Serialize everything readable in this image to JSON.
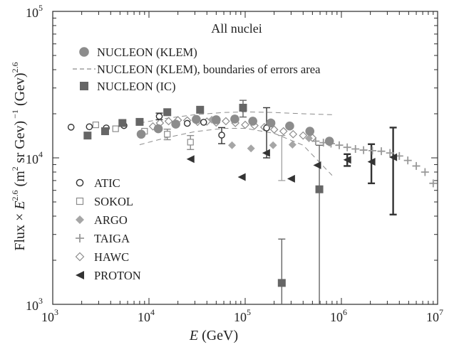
{
  "chart_data": {
    "type": "scatter",
    "title": "All nuclei",
    "xlabel_italic": "E",
    "xlabel_rest": " (GeV)",
    "ylabel_parts": [
      "Flux × ",
      "E",
      "2.6",
      " (m",
      "2",
      " sr Gev)",
      " −1",
      " (Gev)",
      "2.6"
    ],
    "x_scale": "log",
    "y_scale": "log",
    "xlim": [
      1000,
      10000000
    ],
    "ylim": [
      1000,
      100000
    ],
    "x_ticks": [
      {
        "value": 1000,
        "base": "10",
        "exp": "3"
      },
      {
        "value": 10000,
        "base": "10",
        "exp": "4"
      },
      {
        "value": 100000,
        "base": "10",
        "exp": "5"
      },
      {
        "value": 1000000,
        "base": "10",
        "exp": "6"
      },
      {
        "value": 10000000,
        "base": "10",
        "exp": "7"
      }
    ],
    "y_ticks": [
      {
        "value": 1000,
        "base": "10",
        "exp": "3"
      },
      {
        "value": 10000,
        "base": "10",
        "exp": "4"
      },
      {
        "value": 100000,
        "base": "10",
        "exp": "5"
      }
    ],
    "legend_top": [
      {
        "label": "NUCLEON (KLEM)",
        "marker": "circle",
        "color": "#8c8c8c"
      },
      {
        "label": "NUCLEON (KLEM), boundaries of errors area",
        "marker": "dash",
        "color": "#8c8c8c"
      },
      {
        "label": "NUCLEON (IC)",
        "marker": "square",
        "color": "#666666"
      }
    ],
    "legend_left": [
      {
        "label": "ATIC",
        "marker": "open-circle",
        "color": "#333333"
      },
      {
        "label": "SOKOL",
        "marker": "open-square",
        "color": "#8c8c8c"
      },
      {
        "label": "ARGO",
        "marker": "diamond",
        "color": "#a6a6a6"
      },
      {
        "label": "TAIGA",
        "marker": "plus",
        "color": "#999999"
      },
      {
        "label": "HAWC",
        "marker": "open-diamond",
        "color": "#8c8c8c"
      },
      {
        "label": "PROTON",
        "marker": "left-triangle",
        "color": "#333333"
      }
    ],
    "series": [
      {
        "name": "NUCLEON (KLEM)",
        "marker": "circle",
        "color": "#8c8c8c",
        "points": [
          [
            8300,
            14500
          ],
          [
            12500,
            15800
          ],
          [
            19000,
            17000
          ],
          [
            31000,
            18300
          ],
          [
            50000,
            18200
          ],
          [
            78000,
            18400
          ],
          [
            120000,
            17800
          ],
          [
            185000,
            17300
          ],
          [
            290000,
            16500
          ],
          [
            470000,
            15200
          ],
          [
            750000,
            13000
          ]
        ]
      },
      {
        "name": "NUCLEON (IC)",
        "marker": "square",
        "color": "#666666",
        "points": [
          [
            2300,
            14200
          ],
          [
            3500,
            15200
          ],
          [
            5300,
            17300
          ],
          [
            8000,
            17600
          ],
          [
            15500,
            20500
          ],
          [
            34000,
            21300
          ],
          [
            95000,
            22000
          ],
          [
            240000,
            1400
          ],
          [
            590000,
            6100
          ]
        ],
        "errors": [
          [
            0,
            0
          ],
          [
            0,
            0
          ],
          [
            0,
            0
          ],
          [
            0,
            0
          ],
          [
            0,
            0
          ],
          [
            0,
            0
          ],
          [
            2700,
            3000
          ],
          [
            1390,
            1400
          ],
          [
            6090,
            6100
          ]
        ]
      },
      {
        "name": "ATIC",
        "marker": "open-circle",
        "color": "#333333",
        "points": [
          [
            1550,
            16200
          ],
          [
            2400,
            16300
          ],
          [
            3600,
            16000
          ],
          [
            5500,
            16600
          ],
          [
            12800,
            19200
          ],
          [
            25000,
            17200
          ],
          [
            37000,
            17500
          ],
          [
            57000,
            14300
          ],
          [
            167000,
            16000
          ]
        ],
        "errors": [
          [
            0,
            0
          ],
          [
            0,
            0
          ],
          [
            0,
            0
          ],
          [
            0,
            0
          ],
          [
            1000,
            1000
          ],
          [
            0,
            0
          ],
          [
            0,
            0
          ],
          [
            1800,
            1800
          ],
          [
            6000,
            6000
          ]
        ]
      },
      {
        "name": "SOKOL",
        "marker": "open-square",
        "color": "#8c8c8c",
        "points": [
          [
            2800,
            16800
          ],
          [
            4500,
            15800
          ],
          [
            9000,
            15200
          ],
          [
            15500,
            14500
          ],
          [
            27000,
            12800
          ]
        ],
        "errors": [
          [
            0,
            0
          ],
          [
            0,
            0
          ],
          [
            0,
            0
          ],
          [
            1200,
            1200
          ],
          [
            1400,
            1400
          ]
        ]
      },
      {
        "name": "ARGO",
        "marker": "diamond",
        "color": "#a6a6a6",
        "points": [
          [
            45000,
            18200
          ],
          [
            73000,
            12200
          ],
          [
            115000,
            11600
          ],
          [
            195000,
            12200
          ],
          [
            310000,
            12300
          ],
          [
            460000,
            13600
          ],
          [
            750000,
            12700
          ]
        ]
      },
      {
        "name": "TAIGA",
        "marker": "plus",
        "color": "#999999",
        "points": [
          [
            540000,
            13000
          ],
          [
            650000,
            12700
          ],
          [
            780000,
            12500
          ],
          [
            950000,
            12200
          ],
          [
            1150000,
            11800
          ],
          [
            1400000,
            11500
          ],
          [
            1700000,
            11300
          ],
          [
            2100000,
            11200
          ],
          [
            2600000,
            11100
          ],
          [
            3200000,
            10800
          ],
          [
            4000000,
            10300
          ],
          [
            4900000,
            9600
          ],
          [
            6000000,
            8800
          ],
          [
            7400000,
            8000
          ],
          [
            9000000,
            6700
          ]
        ]
      },
      {
        "name": "HAWC",
        "marker": "open-diamond",
        "color": "#8c8c8c",
        "points": [
          [
            11000,
            16400
          ],
          [
            13000,
            17300
          ],
          [
            16000,
            17800
          ],
          [
            20000,
            18100
          ],
          [
            25000,
            18000
          ],
          [
            32000,
            17600
          ],
          [
            40000,
            17700
          ],
          [
            50000,
            17400
          ],
          [
            63000,
            17800
          ],
          [
            79000,
            17300
          ],
          [
            100000,
            16800
          ],
          [
            125000,
            16600
          ],
          [
            158000,
            16200
          ],
          [
            200000,
            15600
          ],
          [
            250000,
            15200
          ],
          [
            315000,
            14500
          ],
          [
            400000,
            14200
          ],
          [
            500000,
            13700
          ]
        ]
      },
      {
        "name": "PROTON",
        "marker": "left-triangle",
        "color": "#333333",
        "points": [
          [
            27000,
            9800
          ],
          [
            92000,
            7400
          ],
          [
            165000,
            10800
          ],
          [
            300000,
            7200
          ],
          [
            560000,
            8900
          ],
          [
            1150000,
            9700
          ],
          [
            2050000,
            9400
          ],
          [
            3450000,
            10100
          ]
        ],
        "errors": [
          [
            0,
            0
          ],
          [
            0,
            0
          ],
          [
            0,
            0
          ],
          [
            0,
            0
          ],
          [
            0,
            0
          ],
          [
            900,
            900
          ],
          [
            3000,
            2700
          ],
          [
            6000,
            6000
          ]
        ]
      }
    ],
    "boundaries": [
      {
        "x": [
          8000,
          15000,
          30000,
          60000,
          100000,
          200000,
          400000,
          800000
        ],
        "y": [
          17300,
          18600,
          19700,
          20400,
          20600,
          20400,
          20000,
          19700
        ]
      },
      {
        "x": [
          8000,
          15000,
          30000,
          60000,
          100000,
          200000,
          400000,
          800000
        ],
        "y": [
          12300,
          13700,
          15100,
          15900,
          15900,
          14700,
          12200,
          7600
        ]
      }
    ],
    "extra_errorbars": [
      {
        "x": 240000,
        "lo": 7000,
        "hi": 14200,
        "color": "#999999"
      }
    ]
  }
}
